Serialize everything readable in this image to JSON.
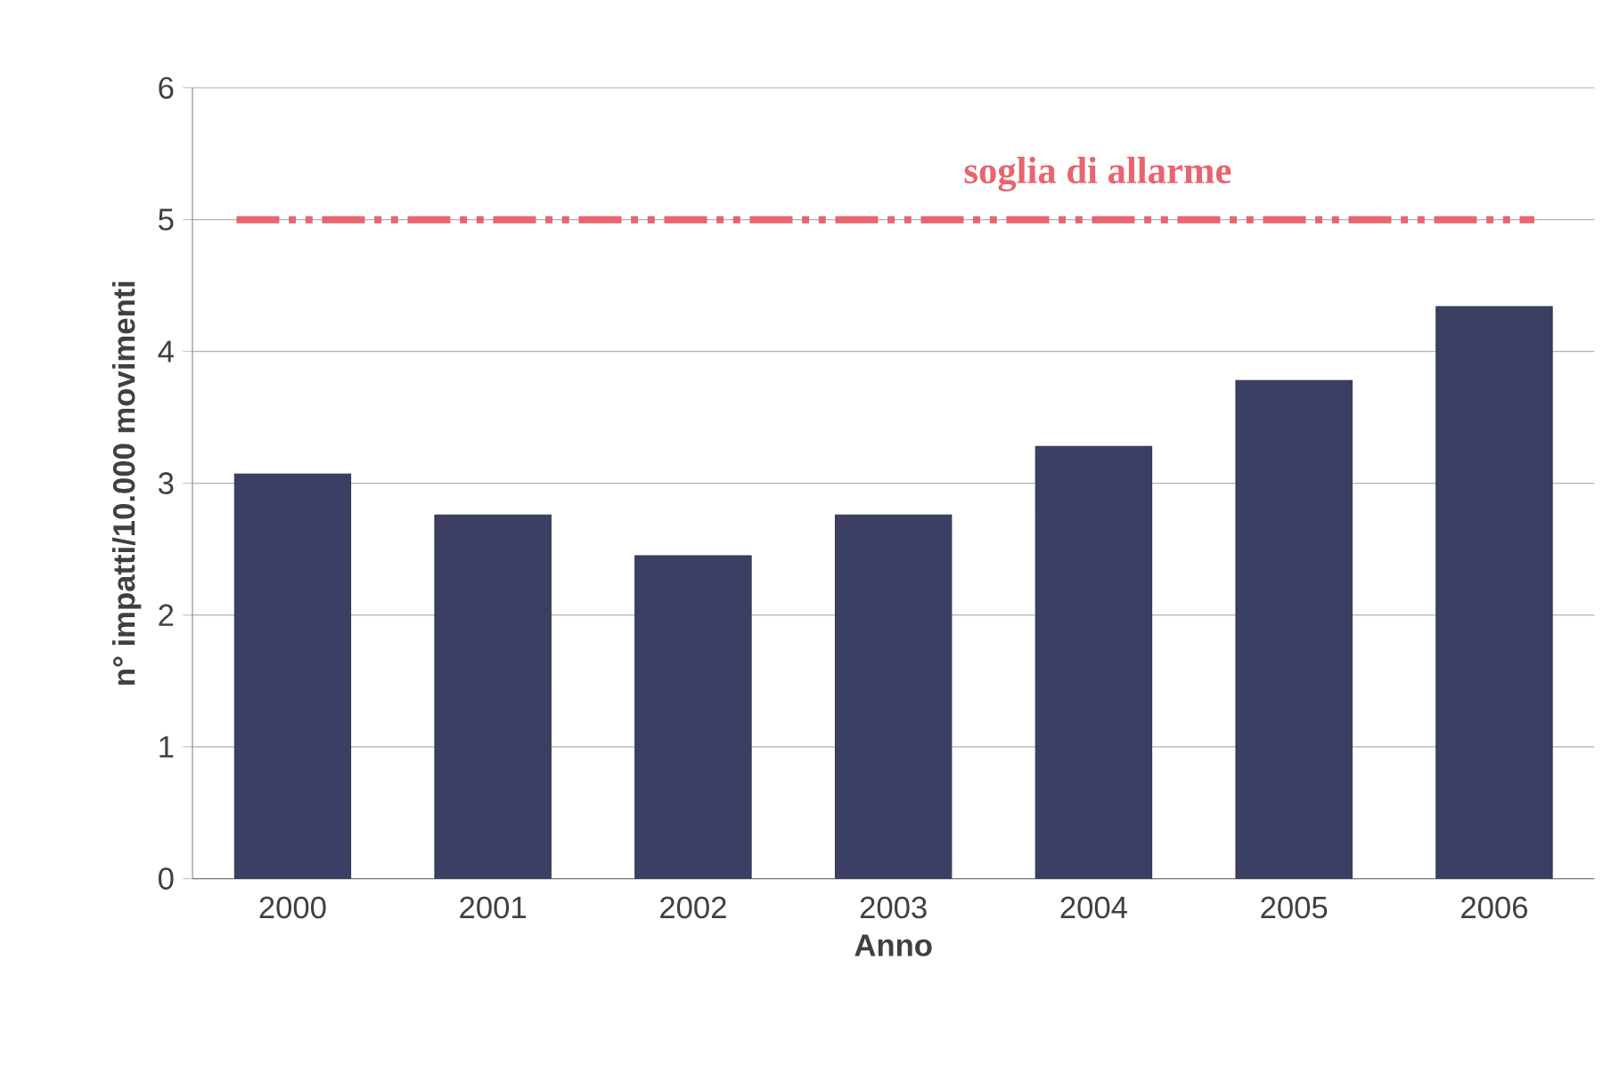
{
  "chart_data": {
    "type": "bar",
    "xlabel": "Anno",
    "ylabel": "n° impatti/10.000 movimenti",
    "categories": [
      "2000",
      "2001",
      "2002",
      "2003",
      "2004",
      "2005",
      "2006"
    ],
    "values": [
      3.07,
      2.76,
      2.45,
      2.76,
      3.28,
      3.78,
      4.34
    ],
    "color": "#3b3f63",
    "ylim": [
      0,
      6
    ],
    "yticks": [
      0,
      1,
      2,
      3,
      4,
      5,
      6
    ],
    "grid": "y",
    "ref_lines": [
      {
        "axis": "y",
        "value": 5,
        "label": "soglia di allarme",
        "color": "#e8646e",
        "line_style": "dashdot"
      }
    ]
  }
}
